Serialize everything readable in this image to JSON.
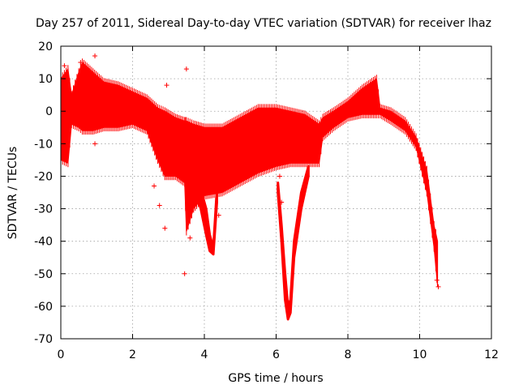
{
  "chart_data": {
    "type": "scatter",
    "title": "Day 257 of 2011, Sidereal Day-to-day VTEC variation (SDTVAR) for receiver lhaz",
    "xlabel": "GPS time / hours",
    "ylabel": "SDTVAR / TECUs",
    "xlim": [
      0,
      12
    ],
    "ylim": [
      -70,
      20
    ],
    "xticks": [
      0,
      2,
      4,
      6,
      8,
      10,
      12
    ],
    "yticks": [
      -70,
      -60,
      -50,
      -40,
      -30,
      -20,
      -10,
      0,
      10,
      20
    ],
    "grid": true,
    "marker": "+",
    "series_color": "#ff0000",
    "envelope": [
      {
        "x": 0.0,
        "lo": -15,
        "hi": 10
      },
      {
        "x": 0.2,
        "lo": -16,
        "hi": 13
      },
      {
        "x": 0.3,
        "lo": -4,
        "hi": 5
      },
      {
        "x": 0.5,
        "lo": -5,
        "hi": 12
      },
      {
        "x": 0.6,
        "lo": -6,
        "hi": 15
      },
      {
        "x": 0.9,
        "lo": -6,
        "hi": 12
      },
      {
        "x": 1.2,
        "lo": -5,
        "hi": 9
      },
      {
        "x": 1.6,
        "lo": -5,
        "hi": 8
      },
      {
        "x": 2.0,
        "lo": -4,
        "hi": 6
      },
      {
        "x": 2.4,
        "lo": -6,
        "hi": 4
      },
      {
        "x": 2.7,
        "lo": -15,
        "hi": 1
      },
      {
        "x": 2.9,
        "lo": -20,
        "hi": 0
      },
      {
        "x": 3.2,
        "lo": -20,
        "hi": -2
      },
      {
        "x": 3.45,
        "lo": -22,
        "hi": -3
      },
      {
        "x": 3.5,
        "lo": -37,
        "hi": -3
      },
      {
        "x": 3.7,
        "lo": -30,
        "hi": -4
      },
      {
        "x": 4.0,
        "lo": -26,
        "hi": -5
      },
      {
        "x": 4.5,
        "lo": -25,
        "hi": -5
      },
      {
        "x": 5.0,
        "lo": -22,
        "hi": -2
      },
      {
        "x": 5.5,
        "lo": -19,
        "hi": 1
      },
      {
        "x": 6.0,
        "lo": -17,
        "hi": 1
      },
      {
        "x": 6.4,
        "lo": -16,
        "hi": 0
      },
      {
        "x": 6.8,
        "lo": -16,
        "hi": -1
      },
      {
        "x": 7.2,
        "lo": -16,
        "hi": -4
      },
      {
        "x": 7.3,
        "lo": -8,
        "hi": -2
      },
      {
        "x": 7.6,
        "lo": -5,
        "hi": 0
      },
      {
        "x": 8.0,
        "lo": -2,
        "hi": 3
      },
      {
        "x": 8.4,
        "lo": -1,
        "hi": 7
      },
      {
        "x": 8.8,
        "lo": -1,
        "hi": 10
      },
      {
        "x": 8.9,
        "lo": -1,
        "hi": 1
      },
      {
        "x": 9.2,
        "lo": -3,
        "hi": 0
      },
      {
        "x": 9.6,
        "lo": -6,
        "hi": -3
      },
      {
        "x": 9.9,
        "lo": -11,
        "hi": -8
      },
      {
        "x": 10.2,
        "lo": -25,
        "hi": -18
      },
      {
        "x": 10.4,
        "lo": -42,
        "hi": -35
      },
      {
        "x": 10.5,
        "lo": -54,
        "hi": -40
      }
    ],
    "dips": [
      {
        "x": [
          3.7,
          3.9,
          4.05,
          4.15,
          4.25,
          4.35
        ],
        "lo": [
          -23,
          -30,
          -38,
          -43,
          -44,
          -28
        ],
        "hi": [
          -20,
          -24,
          -30,
          -38,
          -42,
          -24
        ]
      },
      {
        "x": [
          6.05,
          6.15,
          6.25,
          6.33,
          6.4,
          6.5,
          6.7,
          6.9
        ],
        "lo": [
          -25,
          -40,
          -58,
          -64,
          -62,
          -45,
          -30,
          -20
        ],
        "hi": [
          -22,
          -35,
          -50,
          -60,
          -58,
          -40,
          -25,
          -17
        ]
      }
    ],
    "outliers": [
      {
        "x": 0.1,
        "y": 14
      },
      {
        "x": 0.55,
        "y": 15
      },
      {
        "x": 0.95,
        "y": 17
      },
      {
        "x": 0.95,
        "y": -10
      },
      {
        "x": 2.6,
        "y": -23
      },
      {
        "x": 2.75,
        "y": -29
      },
      {
        "x": 2.9,
        "y": -36
      },
      {
        "x": 2.95,
        "y": 8
      },
      {
        "x": 3.45,
        "y": -50
      },
      {
        "x": 3.5,
        "y": 13
      },
      {
        "x": 3.6,
        "y": -39
      },
      {
        "x": 4.4,
        "y": -32
      },
      {
        "x": 6.1,
        "y": -20
      },
      {
        "x": 6.15,
        "y": -28
      },
      {
        "x": 10.48,
        "y": -52
      },
      {
        "x": 10.52,
        "y": -54
      }
    ]
  }
}
